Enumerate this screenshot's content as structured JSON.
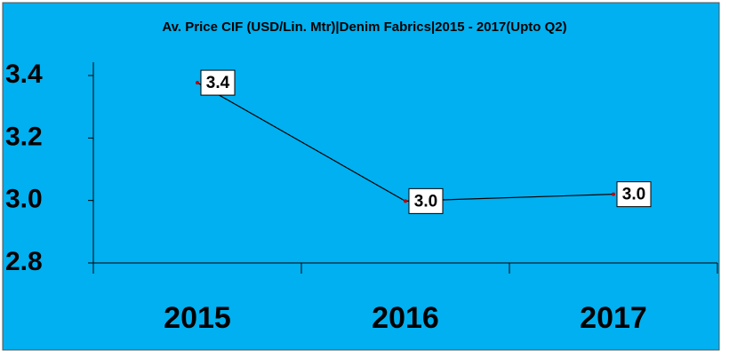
{
  "chart_data": {
    "type": "line",
    "title": "Av. Price CIF (USD/Lin. Mtr)|Denim Fabrics|2015 - 2017(Upto Q2)",
    "categories": [
      "2015",
      "2016",
      "2017"
    ],
    "series": [
      {
        "name": "Av. Price CIF",
        "color": "#000000",
        "values": [
          3.377,
          2.998,
          3.02
        ],
        "value_labels": [
          "3.4",
          "3.0",
          "3.0"
        ]
      }
    ],
    "ylim": [
      2.8,
      3.4
    ],
    "yticks": [
      2.8,
      {
        "value": 3,
        "label": "3.0"
      },
      3.2,
      3.4
    ],
    "background": "#00b0f0"
  }
}
